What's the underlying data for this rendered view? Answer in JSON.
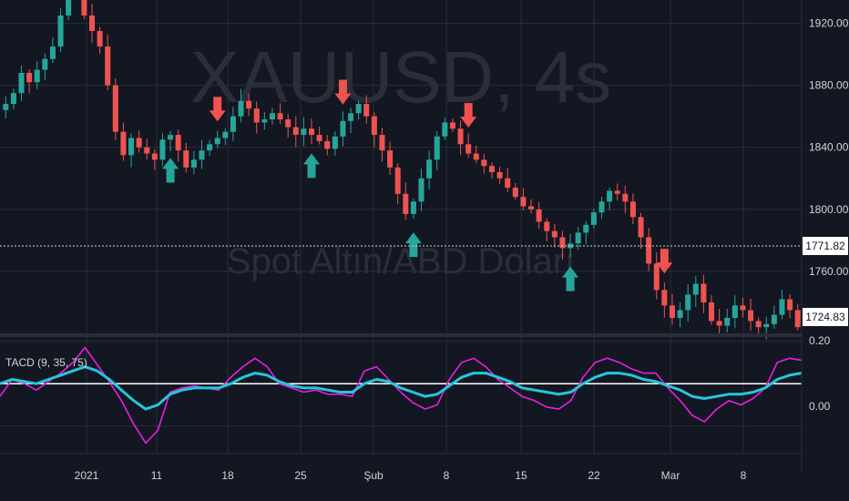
{
  "chart_data": {
    "type": "line",
    "symbol": "XAUUSD, 4s",
    "description": "Spot Altın/ABD Doları",
    "indicator": {
      "label": "TACD (9, 35, 75)",
      "zero_label": "0.00",
      "top_label": "0.20",
      "series": [
        {
          "color": "#e91ee6",
          "values": [
            -0.06,
            0.02,
            0.0,
            -0.03,
            0.01,
            0.05,
            0.1,
            0.17,
            0.09,
            0.01,
            -0.08,
            -0.19,
            -0.28,
            -0.22,
            -0.04,
            -0.02,
            -0.01,
            -0.02,
            -0.03,
            0.03,
            0.08,
            0.12,
            0.08,
            0.0,
            -0.02,
            -0.04,
            -0.03,
            -0.05,
            -0.05,
            -0.06,
            0.06,
            0.08,
            0.02,
            -0.04,
            -0.09,
            -0.12,
            -0.1,
            0.02,
            0.1,
            0.12,
            0.08,
            0.02,
            -0.02,
            -0.06,
            -0.08,
            -0.11,
            -0.12,
            -0.08,
            0.03,
            0.1,
            0.12,
            0.1,
            0.07,
            0.05,
            0.05,
            -0.02,
            -0.08,
            -0.15,
            -0.18,
            -0.12,
            -0.08,
            -0.1,
            -0.07,
            -0.02,
            0.1,
            0.12,
            0.11
          ]
        },
        {
          "color": "#26c6da",
          "values": [
            0.0,
            0.02,
            0.01,
            0.0,
            0.02,
            0.04,
            0.06,
            0.08,
            0.06,
            0.02,
            -0.03,
            -0.08,
            -0.12,
            -0.1,
            -0.05,
            -0.03,
            -0.02,
            -0.02,
            -0.02,
            0.0,
            0.03,
            0.05,
            0.04,
            0.01,
            -0.01,
            -0.02,
            -0.02,
            -0.03,
            -0.04,
            -0.04,
            0.0,
            0.02,
            0.01,
            -0.02,
            -0.04,
            -0.06,
            -0.05,
            -0.01,
            0.03,
            0.05,
            0.05,
            0.03,
            0.01,
            -0.02,
            -0.03,
            -0.04,
            -0.05,
            -0.04,
            0.0,
            0.03,
            0.05,
            0.05,
            0.04,
            0.02,
            0.01,
            -0.01,
            -0.03,
            -0.06,
            -0.07,
            -0.06,
            -0.05,
            -0.05,
            -0.04,
            -0.02,
            0.02,
            0.04,
            0.05
          ]
        }
      ]
    },
    "price_axis": {
      "ticks": [
        "1920.00",
        "1880.00",
        "1840.00",
        "1800.00",
        "1760.00"
      ],
      "current_price": "1724.83",
      "crosshair_price": "1771.82"
    },
    "time_axis": {
      "ticks": [
        "2021",
        "11",
        "18",
        "25",
        "Şub",
        "8",
        "15",
        "22",
        "Mar",
        "8"
      ]
    },
    "close_prices": [
      1868,
      1875,
      1888,
      1882,
      1890,
      1897,
      1905,
      1925,
      1945,
      1950,
      1925,
      1915,
      1905,
      1880,
      1850,
      1835,
      1846,
      1840,
      1836,
      1832,
      1845,
      1848,
      1838,
      1827,
      1832,
      1838,
      1842,
      1846,
      1850,
      1860,
      1870,
      1865,
      1856,
      1858,
      1862,
      1858,
      1853,
      1848,
      1852,
      1848,
      1844,
      1839,
      1847,
      1857,
      1862,
      1868,
      1860,
      1848,
      1838,
      1827,
      1810,
      1797,
      1805,
      1820,
      1832,
      1847,
      1856,
      1852,
      1842,
      1836,
      1832,
      1828,
      1824,
      1820,
      1814,
      1808,
      1802,
      1800,
      1792,
      1786,
      1782,
      1775,
      1778,
      1785,
      1790,
      1798,
      1805,
      1812,
      1810,
      1805,
      1795,
      1782,
      1765,
      1748,
      1738,
      1730,
      1735,
      1745,
      1752,
      1740,
      1728,
      1725,
      1730,
      1738,
      1735,
      1728,
      1724,
      1726,
      1732,
      1742,
      1735,
      1724
    ],
    "signals": {
      "buy": [
        {
          "x_index": 21
        },
        {
          "x_index": 39
        },
        {
          "x_index": 52
        },
        {
          "x_index": 72
        }
      ],
      "sell": [
        {
          "x_index": 27
        },
        {
          "x_index": 43
        },
        {
          "x_index": 59
        },
        {
          "x_index": 84
        }
      ]
    },
    "colors": {
      "up": "#26a69a",
      "down": "#ef5350",
      "background": "#131722",
      "grid": "#2a2e39"
    }
  }
}
